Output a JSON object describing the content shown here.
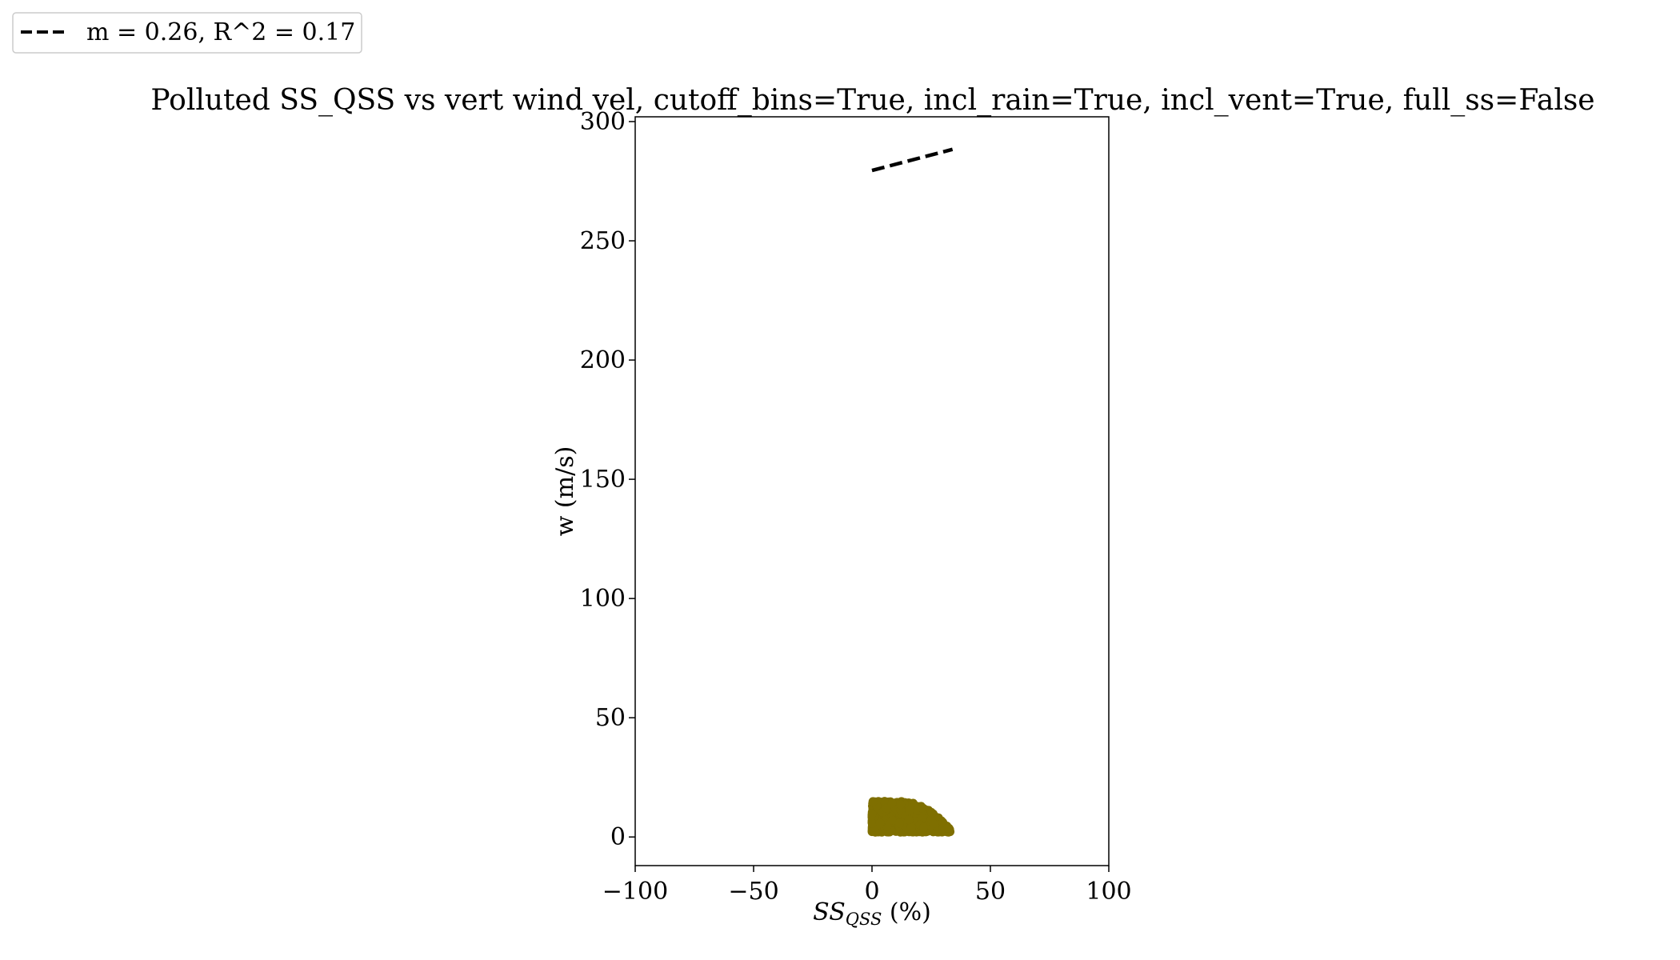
{
  "chart_data": {
    "type": "scatter",
    "title": "Polluted SS_QSS vs vert wind vel, cutoff_bins=True, incl_rain=True, incl_vent=True, full_ss=False",
    "xlabel": {
      "base": "SS",
      "sub": "QSS",
      "suffix": " (%)"
    },
    "ylabel": "w (m/s)",
    "xlim": [
      -100,
      100
    ],
    "ylim": [
      -12,
      302
    ],
    "xticks": [
      -100,
      -50,
      0,
      50,
      100
    ],
    "xtick_labels": [
      "−100",
      "−50",
      "0",
      "50",
      "100"
    ],
    "yticks": [
      0,
      50,
      100,
      150,
      200,
      250,
      300
    ],
    "ytick_labels": [
      "0",
      "50",
      "100",
      "150",
      "200",
      "250",
      "300"
    ],
    "grid": false,
    "legend": {
      "placement": "top-left",
      "entries": [
        {
          "label": "m = 0.26, R^2 = 0.17",
          "style": "dashed",
          "color": "#000000"
        }
      ]
    },
    "scatter_color": "#7f6f00",
    "scatter_cluster": {
      "x_range": [
        0,
        33
      ],
      "y_range": [
        2,
        15
      ],
      "center": [
        12,
        7
      ]
    },
    "fit_line": {
      "slope": 0.26,
      "intercept": 279.5,
      "x_range": [
        0,
        34
      ],
      "color": "#000000"
    }
  }
}
